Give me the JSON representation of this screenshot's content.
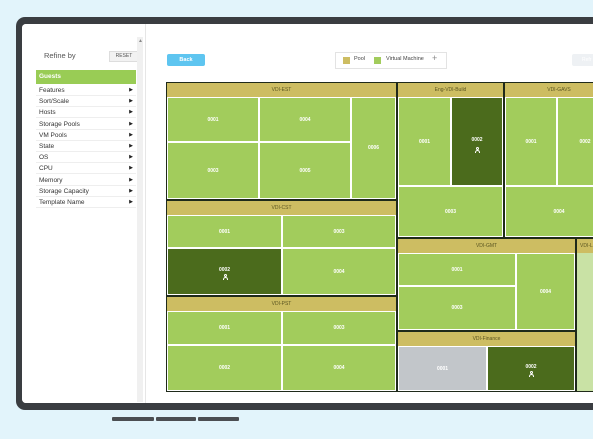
{
  "sidebar": {
    "title": "Refine by",
    "reset_label": "RESET",
    "categories": [
      {
        "label": "Guests",
        "selected": true
      },
      {
        "label": "Features"
      },
      {
        "label": "Sort/Scale"
      },
      {
        "label": "Hosts"
      },
      {
        "label": "Storage Pools"
      },
      {
        "label": "VM Pools"
      },
      {
        "label": "State"
      },
      {
        "label": "OS"
      },
      {
        "label": "CPU"
      },
      {
        "label": "Memory"
      },
      {
        "label": "Storage Capacity"
      },
      {
        "label": "Template Name"
      }
    ]
  },
  "toolbar": {
    "back_label": "Back",
    "legend": {
      "pool_label": "Pool",
      "vm_label": "Virtual Machine",
      "add_label": "+"
    },
    "right_button_label": "Refr"
  },
  "treemap": {
    "pools": [
      {
        "name": "VDI-EST",
        "vms": [
          "0001",
          "0004",
          "0006",
          "0003",
          "0005"
        ]
      },
      {
        "name": "Eng-VDI-Build",
        "vms": [
          "0001",
          "0002",
          "0003"
        ]
      },
      {
        "name": "VDI-GAVS",
        "vms": [
          "0001",
          "0002",
          "0004"
        ]
      },
      {
        "name": "VDI-CST",
        "vms": [
          "0001",
          "0003",
          "0002",
          "0004"
        ]
      },
      {
        "name": "VDI-GMT",
        "vms": [
          "0001",
          "0004",
          "0003"
        ]
      },
      {
        "name": "VDI-L",
        "vms": []
      },
      {
        "name": "VDI-PST",
        "vms": [
          "0001",
          "0003",
          "0002",
          "0004"
        ]
      },
      {
        "name": "VDI-Finance",
        "vms": [
          "0001",
          "0002"
        ]
      }
    ]
  },
  "colors": {
    "vm": "#a2cc5c",
    "vm_active": "#4b6b1c",
    "vm_off": "#c2c6ca",
    "pool_header": "#cdbd62",
    "back_button": "#5ec5f0",
    "selected_category": "#99cc55"
  },
  "icons": {
    "user": "user-icon",
    "arrow": "caret-right-icon"
  }
}
